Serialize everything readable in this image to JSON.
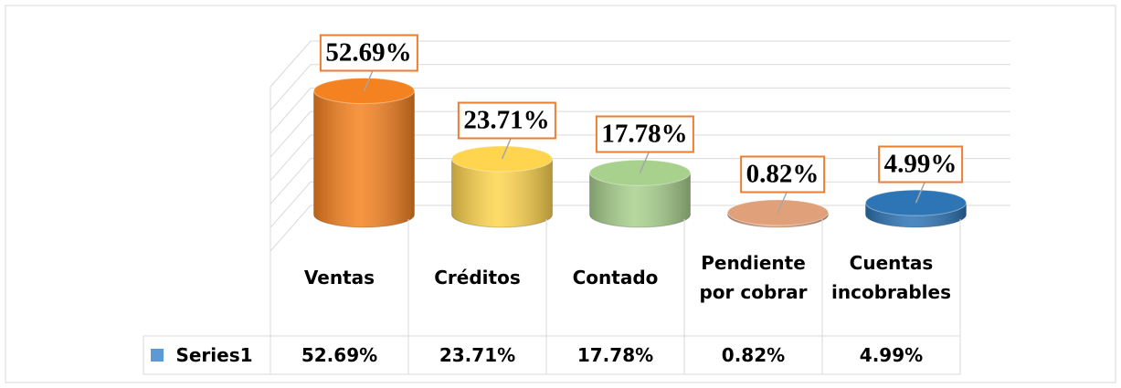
{
  "chart_data": {
    "type": "bar3d",
    "categories": [
      "Ventas",
      "Créditos",
      "Contado",
      "Pendiente por cobrar",
      "Cuentas incobrables"
    ],
    "series": [
      {
        "name": "Series1",
        "color": "#5b9bd5",
        "values": [
          52.69,
          23.71,
          17.78,
          0.82,
          4.99
        ],
        "value_labels": [
          "52.69%",
          "23.71%",
          "17.78%",
          "0.82%",
          "4.99%"
        ],
        "colors": [
          "#f58220",
          "#ffd54f",
          "#a9d18e",
          "#e0a07a",
          "#2e75b6"
        ]
      }
    ],
    "ylim": [
      0,
      70
    ],
    "yticks": [
      0,
      10,
      20,
      30,
      40,
      50,
      60,
      70
    ],
    "grid": true,
    "data_table": true
  }
}
